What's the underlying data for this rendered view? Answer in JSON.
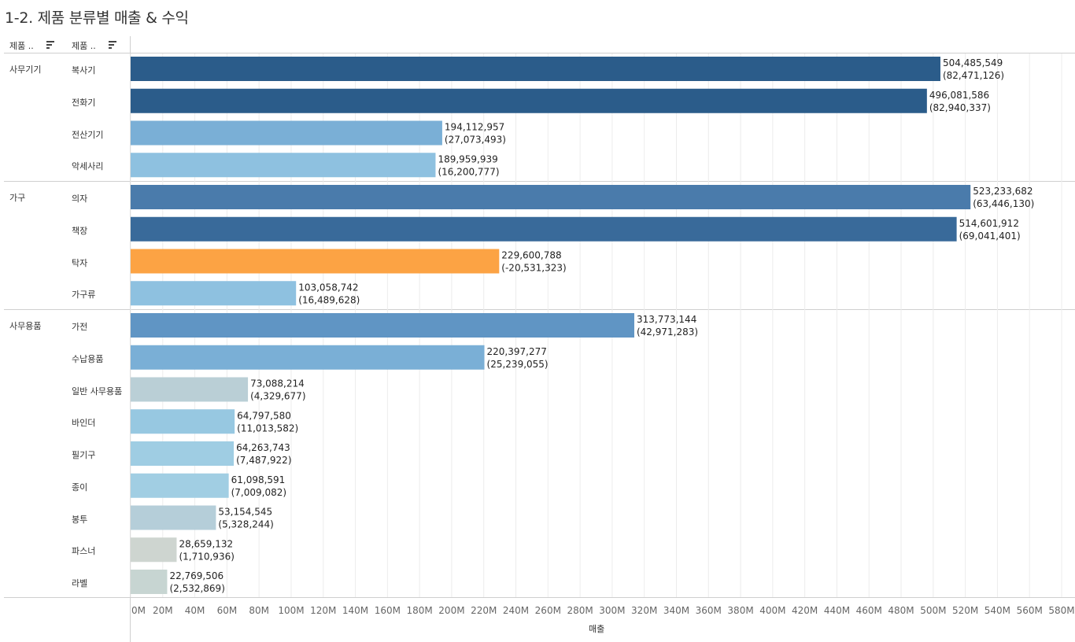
{
  "title": "1-2. 제품 분류별 매출 & 수익",
  "headers": [
    "제품 ..",
    "제품 .."
  ],
  "icons": {
    "sort": "sort-icon"
  },
  "categories": [
    {
      "name": "사무기기",
      "items": [
        {
          "label": "복사기",
          "sales_text": "504,485,549",
          "profit_text": "(82,471,126)"
        },
        {
          "label": "전화기",
          "sales_text": "496,081,586",
          "profit_text": "(82,940,337)"
        },
        {
          "label": "전산기기",
          "sales_text": "194,112,957",
          "profit_text": "(27,073,493)"
        },
        {
          "label": "악세사리",
          "sales_text": "189,959,939",
          "profit_text": "(16,200,777)"
        }
      ]
    },
    {
      "name": "가구",
      "items": [
        {
          "label": "의자",
          "sales_text": "523,233,682",
          "profit_text": "(63,446,130)"
        },
        {
          "label": "책장",
          "sales_text": "514,601,912",
          "profit_text": "(69,041,401)"
        },
        {
          "label": "탁자",
          "sales_text": "229,600,788",
          "profit_text": "(-20,531,323)"
        },
        {
          "label": "가구류",
          "sales_text": "103,058,742",
          "profit_text": "(16,489,628)"
        }
      ]
    },
    {
      "name": "사무용품",
      "items": [
        {
          "label": "가전",
          "sales_text": "313,773,144",
          "profit_text": "(42,971,283)"
        },
        {
          "label": "수납용품",
          "sales_text": "220,397,277",
          "profit_text": "(25,239,055)"
        },
        {
          "label": "일반 사무용품",
          "sales_text": "73,088,214",
          "profit_text": "(4,329,677)"
        },
        {
          "label": "바인더",
          "sales_text": "64,797,580",
          "profit_text": "(11,013,582)"
        },
        {
          "label": "필기구",
          "sales_text": "64,263,743",
          "profit_text": "(7,487,922)"
        },
        {
          "label": "종이",
          "sales_text": "61,098,591",
          "profit_text": "(7,009,082)"
        },
        {
          "label": "봉투",
          "sales_text": "53,154,545",
          "profit_text": "(5,328,244)"
        },
        {
          "label": "파스너",
          "sales_text": "28,659,132",
          "profit_text": "(1,710,936)"
        },
        {
          "label": "라벨",
          "sales_text": "22,769,506",
          "profit_text": "(2,532,869)"
        }
      ]
    }
  ],
  "chart_data": {
    "type": "bar",
    "orientation": "horizontal",
    "title": "1-2. 제품 분류별 매출 & 수익",
    "xlabel": "매출",
    "xlim": [
      0,
      580000000
    ],
    "x_ticks": [
      "0M",
      "20M",
      "40M",
      "60M",
      "80M",
      "100M",
      "120M",
      "140M",
      "160M",
      "180M",
      "200M",
      "220M",
      "240M",
      "260M",
      "280M",
      "300M",
      "320M",
      "340M",
      "360M",
      "380M",
      "400M",
      "420M",
      "440M",
      "460M",
      "480M",
      "500M",
      "520M",
      "540M",
      "560M",
      "580M"
    ],
    "categories": [
      "복사기",
      "전화기",
      "전산기기",
      "악세사리",
      "의자",
      "책장",
      "탁자",
      "가구류",
      "가전",
      "수납용품",
      "일반 사무용품",
      "바인더",
      "필기구",
      "종이",
      "봉투",
      "파스너",
      "라벨"
    ],
    "groups": [
      "사무기기",
      "사무기기",
      "사무기기",
      "사무기기",
      "가구",
      "가구",
      "가구",
      "가구",
      "사무용품",
      "사무용품",
      "사무용품",
      "사무용품",
      "사무용품",
      "사무용품",
      "사무용품",
      "사무용품",
      "사무용품"
    ],
    "sales": [
      504485549,
      496081586,
      194112957,
      189959939,
      523233682,
      514601912,
      229600788,
      103058742,
      313773144,
      220397277,
      73088214,
      64797580,
      64263743,
      61098591,
      53154545,
      28659132,
      22769506
    ],
    "profit": [
      82471126,
      82940337,
      27073493,
      16200777,
      63446130,
      69041401,
      -20531323,
      16489628,
      42971283,
      25239055,
      4329677,
      11013582,
      7487922,
      7009082,
      5328244,
      1710936,
      2532869
    ],
    "bar_colors": [
      "#2b5c8a",
      "#2b5c8a",
      "#7aafd6",
      "#8ec1e0",
      "#4a7bab",
      "#396a9a",
      "#fca344",
      "#8ec1e0",
      "#6095c4",
      "#7aafd6",
      "#bacfd6",
      "#97c8e1",
      "#9fcde3",
      "#a1cee3",
      "#b5ced9",
      "#ced5d0",
      "#c7d5d2"
    ]
  }
}
